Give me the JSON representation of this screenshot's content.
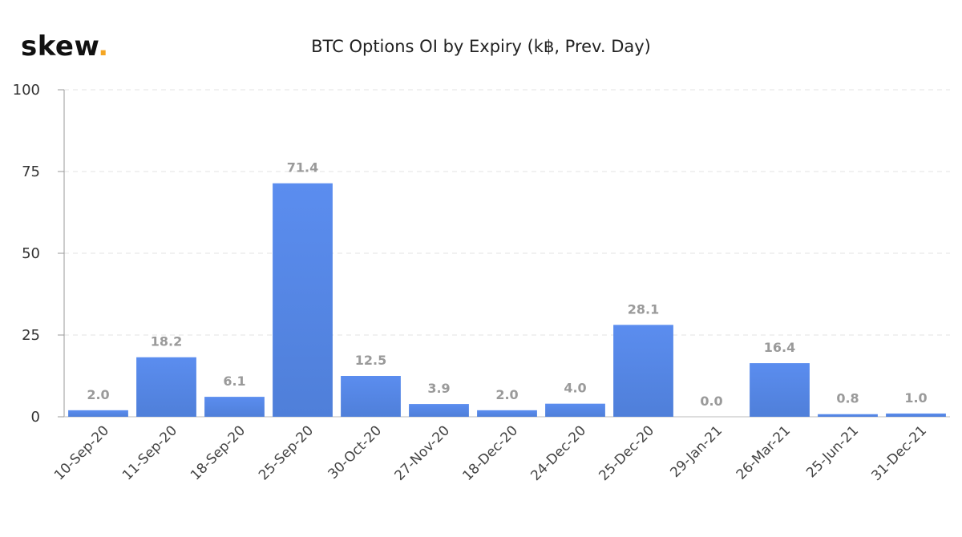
{
  "brand": {
    "name": "skew",
    "dot": "."
  },
  "chart_data": {
    "type": "bar",
    "title": "BTC Options OI by Expiry (k฿, Prev. Day)",
    "xlabel": "",
    "ylabel": "",
    "ylim": [
      0,
      100
    ],
    "yticks": [
      0,
      25,
      50,
      75,
      100
    ],
    "grid": true,
    "bar_color": "#5b8def",
    "bar_color_dark": "#4f7fd9",
    "categories": [
      "10-Sep-20",
      "11-Sep-20",
      "18-Sep-20",
      "25-Sep-20",
      "30-Oct-20",
      "27-Nov-20",
      "18-Dec-20",
      "24-Dec-20",
      "25-Dec-20",
      "29-Jan-21",
      "26-Mar-21",
      "25-Jun-21",
      "31-Dec-21"
    ],
    "values": [
      2.0,
      18.2,
      6.1,
      71.4,
      12.5,
      3.9,
      2.0,
      4.0,
      28.1,
      0.0,
      16.4,
      0.8,
      1.0
    ],
    "data_labels": [
      "2.0",
      "18.2",
      "6.1",
      "71.4",
      "12.5",
      "3.9",
      "2.0",
      "4.0",
      "28.1",
      "0.0",
      "16.4",
      "0.8",
      "1.0"
    ]
  }
}
